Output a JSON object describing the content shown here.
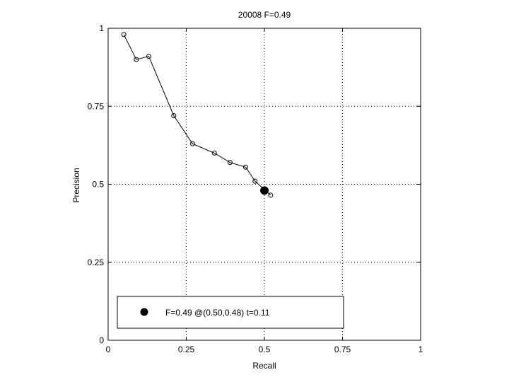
{
  "chart_data": {
    "type": "line",
    "title": "20008 F=0.49",
    "xlabel": "Recall",
    "ylabel": "Precision",
    "xlim": [
      0,
      1
    ],
    "ylim": [
      0,
      1
    ],
    "xticks": [
      0,
      0.25,
      0.5,
      0.75,
      1
    ],
    "xtick_labels": [
      "0",
      "0.25",
      "0.5",
      "0.75",
      "1"
    ],
    "yticks": [
      0,
      0.25,
      0.5,
      0.75,
      1
    ],
    "ytick_labels": [
      "0",
      "0.25",
      "0.5",
      "0.75",
      "1"
    ],
    "grid": true,
    "series": [
      {
        "marker": "open-circle",
        "color": "#000000",
        "x": [
          0.05,
          0.09,
          0.13,
          0.21,
          0.27,
          0.34,
          0.39,
          0.44,
          0.47,
          0.52
        ],
        "y": [
          0.98,
          0.9,
          0.91,
          0.72,
          0.63,
          0.6,
          0.57,
          0.555,
          0.51,
          0.465
        ]
      }
    ],
    "best_point": {
      "x": 0.5,
      "y": 0.48,
      "marker": "filled-circle",
      "color": "#000000"
    },
    "legend": {
      "position": "bottom",
      "label": "F=0.49 @(0.50,0.48) t=0.11"
    }
  }
}
